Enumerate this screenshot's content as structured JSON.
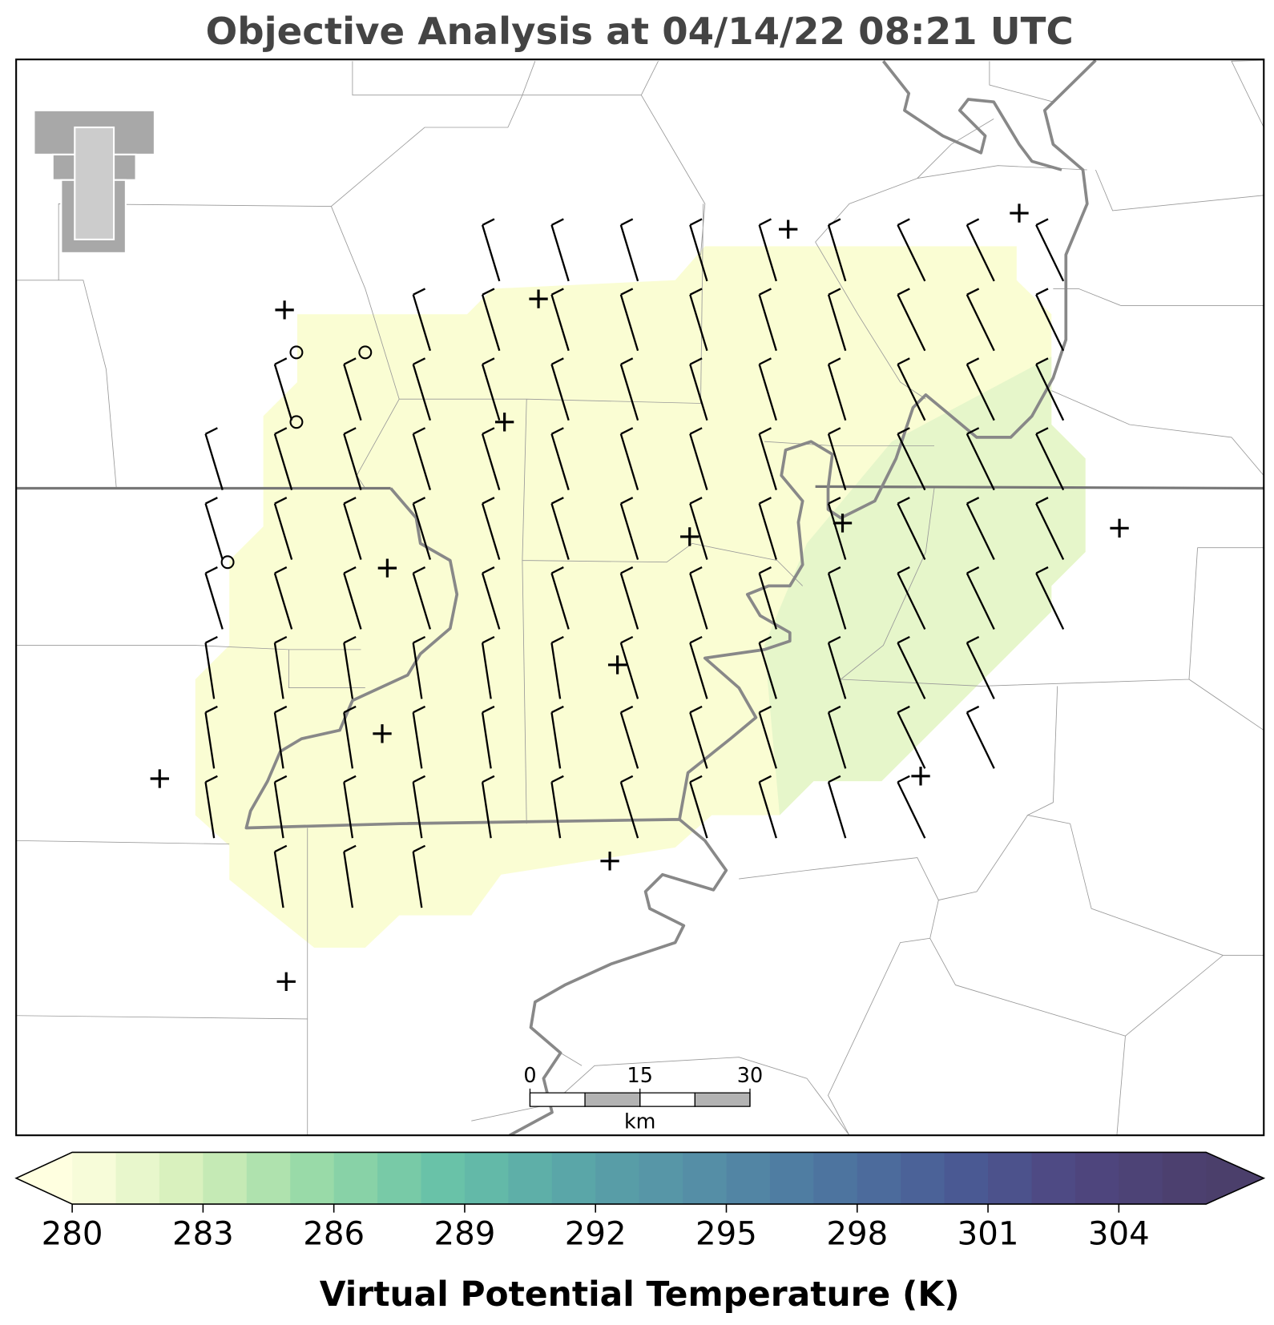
{
  "title": "Objective Analysis at 04/14/22 08:21 UTC",
  "colorbar": {
    "label": "Virtual Potential Temperature (K)",
    "clim": [
      280,
      306
    ],
    "step": 1,
    "ticks": [
      280,
      283,
      286,
      289,
      292,
      295,
      298,
      301,
      304
    ],
    "colors": [
      "#ffffe0",
      "#d3efb9",
      "#93d8a6",
      "#66c1a8",
      "#5aa5a8",
      "#558ea6",
      "#4d76a0",
      "#4a5b95",
      "#4f4680",
      "#4b3f6b"
    ],
    "extend": "both"
  },
  "scale_bar": {
    "ticks": [
      0,
      15,
      30
    ],
    "unit": "km"
  }
}
